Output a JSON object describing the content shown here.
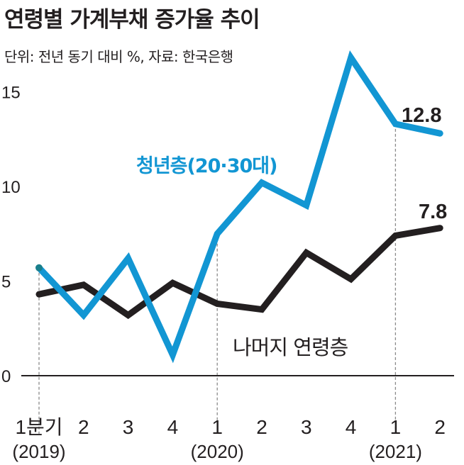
{
  "chart_data": {
    "type": "line",
    "title": "연령별 가계부채 증가율 추이",
    "subtitle": "단위: 전년 동기 대비 %, 자료: 한국은행",
    "categories": [
      "1분기",
      "2",
      "3",
      "4",
      "1",
      "2",
      "3",
      "4",
      "1",
      "2"
    ],
    "year_labels": [
      {
        "index": 0,
        "label": "(2019)"
      },
      {
        "index": 4,
        "label": "(2020)"
      },
      {
        "index": 8,
        "label": "(2021)"
      }
    ],
    "y_ticks": [
      "0",
      "5",
      "10",
      "15"
    ],
    "ylim": [
      0,
      17
    ],
    "series": [
      {
        "name": "청년층(20·30대)",
        "color": "#1296d3",
        "values": [
          5.7,
          3.2,
          6.2,
          1.1,
          7.5,
          10.2,
          9.0,
          16.8,
          13.3,
          12.8
        ],
        "end_label": "12.8"
      },
      {
        "name": "나머지 연령층",
        "color": "#231f20",
        "values": [
          4.3,
          4.8,
          3.2,
          4.9,
          3.8,
          3.5,
          6.5,
          5.1,
          7.4,
          7.8
        ],
        "end_label": "7.8"
      }
    ]
  }
}
